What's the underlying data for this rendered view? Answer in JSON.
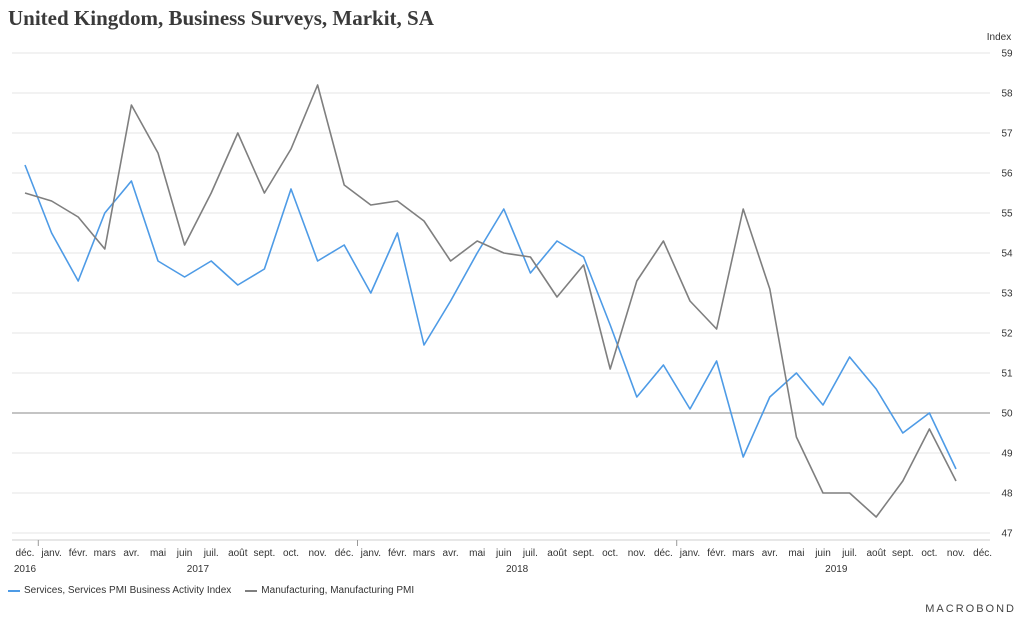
{
  "title": "United Kingdom, Business Surveys, Markit, SA",
  "branding": {
    "logo": "MACROBOND"
  },
  "colors": {
    "services": "#4e9be6",
    "manufacturing": "#7f7f7f",
    "grid": "#e4e4e4",
    "reference": "#a0a0a0"
  },
  "chart_data": {
    "type": "line",
    "title": "United Kingdom, Business Surveys, Markit, SA",
    "ylabel": "Index",
    "ylim": [
      47,
      59
    ],
    "yticks": [
      47,
      48,
      49,
      50,
      51,
      52,
      53,
      54,
      55,
      56,
      57,
      58,
      59
    ],
    "reference_line": 50,
    "grid": true,
    "legend_position": "bottom-left",
    "x_labels": [
      "déc.",
      "janv.",
      "févr.",
      "mars",
      "avr.",
      "mai",
      "juin",
      "juil.",
      "août",
      "sept.",
      "oct.",
      "nov.",
      "déc.",
      "janv.",
      "févr.",
      "mars",
      "avr.",
      "mai",
      "juin",
      "juil.",
      "août",
      "sept.",
      "oct.",
      "nov.",
      "déc.",
      "janv.",
      "févr.",
      "mars",
      "avr.",
      "mai",
      "juin",
      "juil.",
      "août",
      "sept.",
      "oct.",
      "nov.",
      "déc."
    ],
    "year_labels": [
      {
        "label": "2016",
        "index": 0
      },
      {
        "label": "2017",
        "index": 6.5
      },
      {
        "label": "2018",
        "index": 18.5
      },
      {
        "label": "2019",
        "index": 30.5
      }
    ],
    "year_separators": [
      0.5,
      12.5,
      24.5
    ],
    "series": [
      {
        "name": "Services, Services PMI Business Activity Index",
        "color": "#4e9be6",
        "values": [
          56.2,
          54.5,
          53.3,
          55.0,
          55.8,
          53.8,
          53.4,
          53.8,
          53.2,
          53.6,
          55.6,
          53.8,
          54.2,
          53.0,
          54.5,
          51.7,
          52.8,
          54.0,
          55.1,
          53.5,
          54.3,
          53.9,
          52.2,
          50.4,
          51.2,
          50.1,
          51.3,
          48.9,
          50.4,
          51.0,
          50.2,
          51.4,
          50.6,
          49.5,
          50.0,
          48.6
        ]
      },
      {
        "name": "Manufacturing, Manufacturing PMI",
        "color": "#7f7f7f",
        "values": [
          55.5,
          55.3,
          54.9,
          54.1,
          57.7,
          56.5,
          54.2,
          55.5,
          57.0,
          55.5,
          56.6,
          58.2,
          55.7,
          55.2,
          55.3,
          54.8,
          53.8,
          54.3,
          54.0,
          53.9,
          52.9,
          53.7,
          51.1,
          53.3,
          54.3,
          52.8,
          52.1,
          55.1,
          53.1,
          49.4,
          48.0,
          48.0,
          47.4,
          48.3,
          49.6,
          48.3
        ]
      }
    ]
  }
}
